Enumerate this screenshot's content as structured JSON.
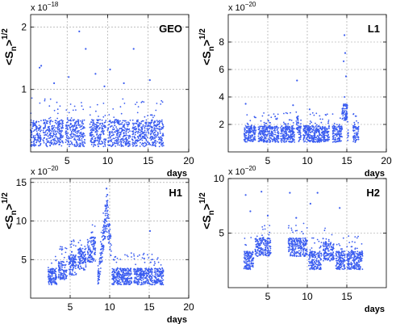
{
  "chart_data": [
    {
      "type": "scatter",
      "title": "GEO",
      "xlabel": "days",
      "ylabel": {
        "base": "<S",
        "sub": "n",
        "close": ">",
        "sup": "1/2"
      },
      "exponent": {
        "prefix": "x 10",
        "power": "−18"
      },
      "xlim": [
        0.5,
        20
      ],
      "ylim": [
        0,
        2.2
      ],
      "xticks": [
        5,
        10,
        15,
        20
      ],
      "yticks": [
        1,
        2
      ],
      "grid": true,
      "color": "#3a5cf0",
      "x_range": [
        0.5,
        17
      ],
      "baseline": 0.3,
      "spread": 0.18,
      "outliers": [
        [
          1.6,
          1.35
        ],
        [
          1.8,
          1.38
        ],
        [
          6.5,
          1.93
        ],
        [
          5.2,
          1.2
        ],
        [
          7.3,
          1.65
        ],
        [
          8.5,
          1.25
        ],
        [
          10.3,
          1.32
        ],
        [
          13.2,
          1.65
        ],
        [
          15.2,
          1.15
        ],
        [
          12.0,
          1.1
        ],
        [
          3.4,
          1.1
        ],
        [
          9.6,
          1.05
        ]
      ],
      "samples": [
        [
          1,
          0.35
        ],
        [
          3,
          0.3
        ],
        [
          5,
          0.4
        ],
        [
          7,
          0.3
        ],
        [
          10,
          0.35
        ],
        [
          12,
          0.4
        ],
        [
          14,
          0.35
        ],
        [
          16.5,
          0.3
        ]
      ]
    },
    {
      "type": "scatter",
      "title": "L1",
      "xlabel": "days",
      "ylabel": {
        "base": "<S",
        "sub": "n",
        "close": ">",
        "sup": "1/2"
      },
      "exponent": {
        "prefix": "x 10",
        "power": "−20"
      },
      "xlim": [
        0,
        20
      ],
      "ylim": [
        0,
        10
      ],
      "xticks": [
        5,
        10,
        15,
        20
      ],
      "yticks": [
        2,
        4,
        6,
        8
      ],
      "grid": true,
      "color": "#3a5cf0",
      "x_range": [
        2,
        16.5
      ],
      "baseline": 1.3,
      "spread": 0.5,
      "outliers": [
        [
          14.7,
          8.5
        ],
        [
          14.8,
          7.2
        ],
        [
          14.6,
          6.6
        ],
        [
          8.7,
          5.2
        ],
        [
          14.9,
          5.5
        ],
        [
          2.2,
          3.5
        ],
        [
          10.3,
          3.1
        ],
        [
          8.2,
          3.4
        ]
      ],
      "samples": [
        [
          2.5,
          2.0
        ],
        [
          5,
          1.5
        ],
        [
          8.7,
          2.5
        ],
        [
          12,
          1.5
        ],
        [
          14.7,
          4.0
        ],
        [
          16,
          2.0
        ]
      ]
    },
    {
      "type": "scatter",
      "title": "H1",
      "xlabel": "days",
      "ylabel": {
        "base": "<S",
        "sub": "n",
        "close": ">",
        "sup": "1/2"
      },
      "exponent": {
        "prefix": "x 10",
        "power": "−20"
      },
      "xlim": [
        0,
        20
      ],
      "ylim": [
        0,
        15.5
      ],
      "xticks": [
        5,
        10,
        15,
        20
      ],
      "yticks": [
        5,
        10,
        15
      ],
      "grid": true,
      "color": "#3a5cf0",
      "x_range": [
        2.2,
        16.8
      ],
      "baseline": 2.8,
      "spread": 1.0,
      "outliers": [
        [
          9.6,
          14.2
        ],
        [
          9.7,
          13.4
        ],
        [
          7.7,
          8.5
        ],
        [
          15.1,
          8.7
        ],
        [
          6.2,
          6.4
        ],
        [
          3.2,
          4.9
        ],
        [
          5.2,
          6.0
        ]
      ],
      "samples": [
        [
          3,
          3.5
        ],
        [
          5,
          5.0
        ],
        [
          6.5,
          6.0
        ],
        [
          8,
          7.5
        ],
        [
          9.6,
          12.0
        ],
        [
          10.5,
          5.0
        ],
        [
          12,
          3.0
        ],
        [
          14,
          3.5
        ],
        [
          16,
          3.0
        ]
      ]
    },
    {
      "type": "scatter",
      "title": "H2",
      "xlabel": "days",
      "ylabel": {
        "base": "<S",
        "sub": "n",
        "close": ">",
        "sup": "1/2"
      },
      "exponent": {
        "prefix": "x 10",
        "power": "−20"
      },
      "xlim": [
        0,
        20
      ],
      "ylim": [
        0,
        10
      ],
      "xticks": [
        5,
        10,
        15
      ],
      "yticks": [
        5,
        10
      ],
      "grid": true,
      "color": "#3a5cf0",
      "x_range": [
        2,
        17
      ],
      "baseline": 2.5,
      "spread": 0.7,
      "outliers": [
        [
          2.2,
          8.5
        ],
        [
          4.2,
          8.8
        ],
        [
          7.8,
          8.7
        ],
        [
          11.3,
          8.7
        ],
        [
          10.4,
          7.7
        ],
        [
          14.1,
          7.3
        ],
        [
          2.8,
          7.0
        ],
        [
          5.0,
          6.6
        ],
        [
          8.6,
          6.4
        ]
      ],
      "samples": [
        [
          2.5,
          3.0
        ],
        [
          4.5,
          4.0
        ],
        [
          8,
          4.5
        ],
        [
          9.5,
          3.5
        ],
        [
          11,
          3.0
        ],
        [
          12,
          4.5
        ],
        [
          14,
          3.0
        ],
        [
          16,
          2.0
        ]
      ]
    }
  ]
}
